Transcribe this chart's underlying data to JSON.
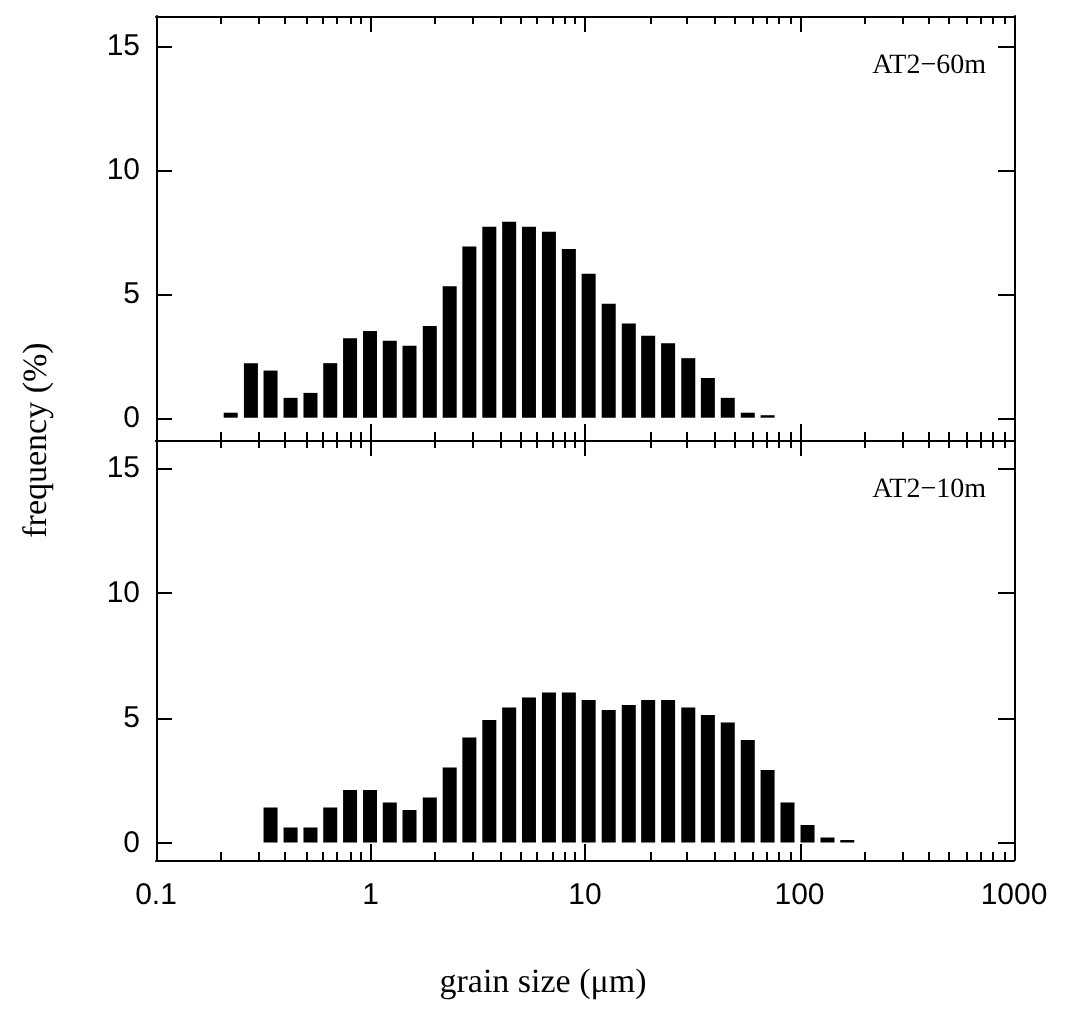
{
  "chart_data": [
    {
      "type": "bar",
      "ylabel": "frequency (%)",
      "annotations": [
        "AT2−60m"
      ],
      "log": "x",
      "xlim": [
        0.1,
        1000
      ],
      "xticks": [
        0.1,
        1,
        10,
        100,
        1000
      ],
      "ylim": [
        -0.9,
        16.2
      ],
      "yticks": [
        0,
        5,
        10,
        15
      ],
      "tick_labels": "y",
      "color": "#000000",
      "x": [
        0.223,
        0.277,
        0.342,
        0.424,
        0.525,
        0.649,
        0.803,
        0.995,
        1.23,
        1.52,
        1.89,
        2.34,
        2.89,
        3.58,
        4.43,
        5.48,
        6.79,
        8.41,
        10.4,
        12.9,
        16.0,
        19.7,
        24.4,
        30.3,
        37.4,
        46.3,
        57.4,
        71.0
      ],
      "values": [
        0.2,
        2.2,
        1.9,
        0.8,
        1.0,
        2.2,
        3.2,
        3.5,
        3.1,
        2.9,
        3.7,
        5.3,
        6.9,
        7.7,
        7.9,
        7.7,
        7.5,
        6.8,
        5.8,
        4.6,
        3.8,
        3.3,
        3.0,
        2.4,
        1.6,
        0.8,
        0.2,
        0.1
      ]
    },
    {
      "type": "bar",
      "xlabel": "grain size (μm)",
      "annotations": [
        "AT2−10m"
      ],
      "log": "x",
      "xlim": [
        0.1,
        1000
      ],
      "xticks": [
        0.1,
        1,
        10,
        100,
        1000
      ],
      "ylim": [
        -0.7,
        16.1
      ],
      "yticks": [
        0,
        5,
        10,
        15
      ],
      "color": "#000000",
      "x": [
        0.342,
        0.424,
        0.525,
        0.649,
        0.803,
        0.995,
        1.23,
        1.52,
        1.89,
        2.34,
        2.89,
        3.58,
        4.43,
        5.48,
        6.79,
        8.41,
        10.4,
        12.9,
        16.0,
        19.7,
        24.4,
        30.3,
        37.4,
        46.3,
        57.4,
        71.0,
        87.9,
        109,
        135,
        167
      ],
      "values": [
        1.4,
        0.6,
        0.6,
        1.4,
        2.1,
        2.1,
        1.6,
        1.3,
        1.8,
        3.0,
        4.2,
        4.9,
        5.4,
        5.8,
        6.0,
        6.0,
        5.7,
        5.3,
        5.5,
        5.7,
        5.7,
        5.4,
        5.1,
        4.8,
        4.1,
        2.9,
        1.6,
        0.7,
        0.2,
        0.1
      ]
    }
  ]
}
